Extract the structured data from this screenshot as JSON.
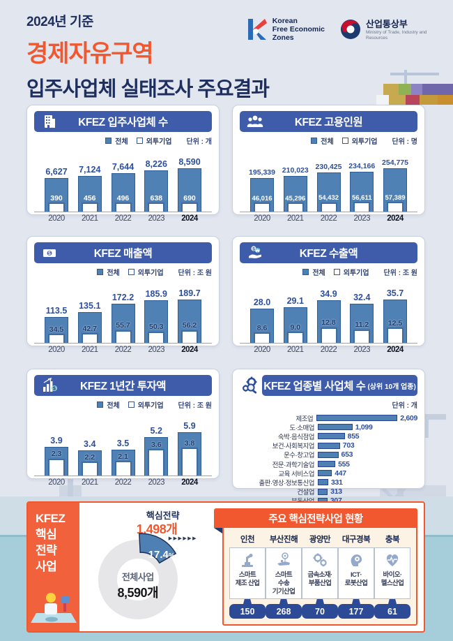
{
  "header": {
    "subtitle": "2024년 기준",
    "title_line1": "경제자유구역",
    "title_line2": "입주사업체 실태조사 주요결과",
    "logo_kfez_lines": "Korean\nFree Economic\nZones",
    "logo_motie_name": "산업통상부",
    "logo_motie_sub": "Ministry of Trade, Industry and Resources"
  },
  "legend": {
    "total": "전체",
    "foreign": "외투기업"
  },
  "colors": {
    "accent_orange": "#f1582f",
    "header_navy": "#3e5ca9",
    "bar_blue": "#5081b4",
    "value_navy": "#2d4f9e",
    "pill_navy": "#2c4a96",
    "water_teal": "#a6ceda"
  },
  "chart_data": [
    {
      "type": "bar",
      "title": "KFEZ 입주사업체 수",
      "icon": "building-icon",
      "unit": "단위 : 개",
      "categories": [
        "2020",
        "2021",
        "2022",
        "2023",
        "2024"
      ],
      "series": [
        {
          "name": "전체",
          "values": [
            6627,
            7124,
            7644,
            8226,
            8590
          ],
          "labels": [
            "6,627",
            "7,124",
            "7,644",
            "8,226",
            "8,590"
          ]
        },
        {
          "name": "외투기업",
          "values": [
            390,
            456,
            496,
            638,
            690
          ],
          "labels": [
            "390",
            "456",
            "496",
            "638",
            "690"
          ]
        }
      ],
      "inner_label_color": "#ffffff"
    },
    {
      "type": "bar",
      "title": "KFEZ 고용인원",
      "icon": "people-icon",
      "unit": "단위 : 명",
      "categories": [
        "2020",
        "2021",
        "2022",
        "2023",
        "2024"
      ],
      "series": [
        {
          "name": "전체",
          "values": [
            195339,
            210023,
            230425,
            234166,
            254775
          ],
          "labels": [
            "195,339",
            "210,023",
            "230,425",
            "234,166",
            "254,775"
          ]
        },
        {
          "name": "외투기업",
          "values": [
            46016,
            45296,
            54432,
            56611,
            57389
          ],
          "labels": [
            "46,016",
            "45,296",
            "54,432",
            "56,611",
            "57,389"
          ]
        }
      ],
      "inner_label_color": "#ffffff"
    },
    {
      "type": "bar",
      "title": "KFEZ 매출액",
      "icon": "money-icon",
      "unit": "단위 : 조 원",
      "categories": [
        "2020",
        "2021",
        "2022",
        "2023",
        "2024"
      ],
      "series": [
        {
          "name": "전체",
          "values": [
            113.5,
            135.1,
            172.2,
            185.9,
            189.7
          ],
          "labels": [
            "113.5",
            "135.1",
            "172.2",
            "185.9",
            "189.7"
          ]
        },
        {
          "name": "외투기업",
          "values": [
            34.5,
            42.7,
            55.7,
            50.3,
            56.2
          ],
          "labels": [
            "34.5",
            "42.7",
            "55.7",
            "50.3",
            "56.2"
          ]
        }
      ],
      "inner_label_color": "#1d3a6e"
    },
    {
      "type": "bar",
      "title": "KFEZ 수출액",
      "icon": "hand-coins-icon",
      "unit": "단위 : 조 원",
      "categories": [
        "2020",
        "2021",
        "2022",
        "2023",
        "2024"
      ],
      "series": [
        {
          "name": "전체",
          "values": [
            28.0,
            29.1,
            34.9,
            32.4,
            35.7
          ],
          "labels": [
            "28.0",
            "29.1",
            "34.9",
            "32.4",
            "35.7"
          ]
        },
        {
          "name": "외투기업",
          "values": [
            8.6,
            9.0,
            12.8,
            11.2,
            12.5
          ],
          "labels": [
            "8.6",
            "9.0",
            "12.8",
            "11.2",
            "12.5"
          ]
        }
      ],
      "inner_label_color": "#1d3a6e"
    },
    {
      "type": "bar",
      "title": "KFEZ 1년간 투자액",
      "icon": "invest-chart-icon",
      "unit": "단위 : 조 원",
      "categories": [
        "2020",
        "2021",
        "2022",
        "2023",
        "2024"
      ],
      "series": [
        {
          "name": "전체",
          "values": [
            3.9,
            3.4,
            3.5,
            5.2,
            5.9
          ],
          "labels": [
            "3.9",
            "3.4",
            "3.5",
            "5.2",
            "5.9"
          ]
        },
        {
          "name": "외투기업",
          "values": [
            2.3,
            2.2,
            2.1,
            3.6,
            3.8
          ],
          "labels": [
            "2.3",
            "2.2",
            "2.1",
            "3.6",
            "3.8"
          ]
        }
      ],
      "inner_label_color": "#1d3a6e"
    },
    {
      "type": "bar_horizontal",
      "title": "KFEZ 업종별 사업체 수",
      "title_suffix": "(상위 10개 업종)",
      "icon": "gears-magnifier-icon",
      "unit": "단위 : 개",
      "categories": [
        "제조업",
        "도·소매업",
        "숙박·음식점업",
        "보건·사회복지업",
        "운수·창고업",
        "전문·과학기술업",
        "교육 서비스업",
        "출판·영상·정보통신업",
        "건설업",
        "부동산업"
      ],
      "values": [
        2609,
        1099,
        855,
        703,
        653,
        555,
        447,
        331,
        313,
        307
      ],
      "labels": [
        "2,609",
        "1,099",
        "855",
        "703",
        "653",
        "555",
        "447",
        "331",
        "313",
        "307"
      ]
    },
    {
      "type": "donut",
      "title": "KFEZ 핵심전략사업",
      "highlight_label": "핵심전략",
      "highlight_value": "1,498개",
      "highlight_pct": 17.4,
      "pct_label": "17.4",
      "pct_suffix": "%",
      "center_label": "전체사업",
      "center_value": "8,590개"
    }
  ],
  "strategy": {
    "panel_title": "KFEZ\n핵심\n전략\n사업",
    "chevrons": "▶▶▶▶▶▶",
    "board_title": "주요 핵심전략사업  현황",
    "regions": [
      {
        "name": "인천",
        "icon": "robot-arm-icon",
        "industry": "스마트\n제조 산업",
        "count": "150"
      },
      {
        "name": "부산진해",
        "icon": "transport-icon",
        "industry": "스마트\n수송\n기기산업",
        "count": "268"
      },
      {
        "name": "광양만",
        "icon": "gears-icon",
        "industry": "금속소재·\n부품산업",
        "count": "70"
      },
      {
        "name": "대구경북",
        "icon": "ict-robot-icon",
        "industry": "ICT·\n로봇산업",
        "count": "177"
      },
      {
        "name": "충북",
        "icon": "heart-pulse-icon",
        "industry": "바이오·\n헬스산업",
        "count": "61"
      }
    ]
  }
}
